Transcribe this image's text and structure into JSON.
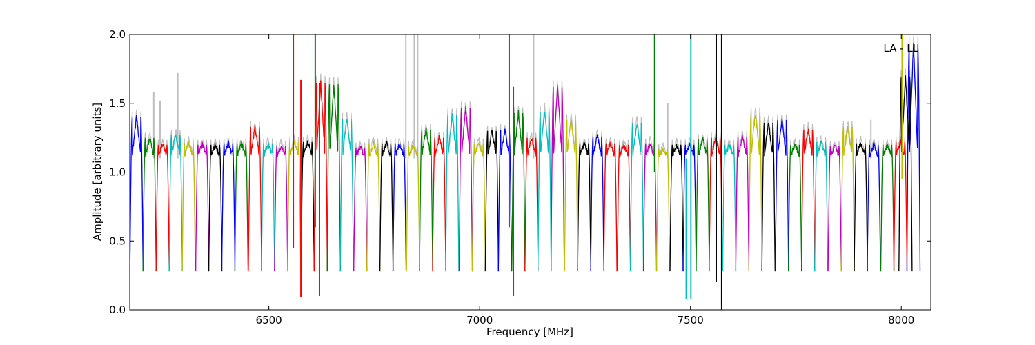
{
  "chart_data": {
    "type": "line",
    "title": "",
    "annotation": "LA - LL",
    "xlabel": "Frequency [MHz]",
    "ylabel": "Amplitude [arbitrary units]",
    "xlim": [
      6170,
      8070
    ],
    "ylim": [
      0.0,
      2.0
    ],
    "xticks": [
      6500,
      7000,
      7500,
      8000
    ],
    "xtick_labels": [
      "6500",
      "7000",
      "7500",
      "8000"
    ],
    "yticks": [
      0.0,
      0.5,
      1.0,
      1.5,
      2.0
    ],
    "ytick_labels": [
      "0.0",
      "0.5",
      "1.0",
      "1.5",
      "2.0"
    ],
    "grid": false,
    "channel_width_mhz": 31.25,
    "background_series": {
      "color": "#bfbfbf",
      "description": "raw channel amplitudes (grey)"
    },
    "color_cycle": [
      "#0000ff",
      "#008000",
      "#ff0000",
      "#00bfbf",
      "#bfbf00",
      "#bf00bf",
      "#000000"
    ],
    "channels": [
      {
        "center": 6186,
        "peak": 1.4,
        "color": "#0000ff"
      },
      {
        "center": 6217,
        "peak": 1.25,
        "color": "#008000"
      },
      {
        "center": 6248,
        "peak": 1.2,
        "color": "#ff0000"
      },
      {
        "center": 6279,
        "peak": 1.27,
        "color": "#00bfbf"
      },
      {
        "center": 6310,
        "peak": 1.21,
        "color": "#bfbf00"
      },
      {
        "center": 6342,
        "peak": 1.2,
        "color": "#bf00bf"
      },
      {
        "center": 6373,
        "peak": 1.2,
        "color": "#000000"
      },
      {
        "center": 6404,
        "peak": 1.21,
        "color": "#0000ff"
      },
      {
        "center": 6435,
        "peak": 1.21,
        "color": "#008000"
      },
      {
        "center": 6467,
        "peak": 1.33,
        "color": "#ff0000"
      },
      {
        "center": 6498,
        "peak": 1.21,
        "color": "#00bfbf"
      },
      {
        "center": 6529,
        "peak": 1.19,
        "color": "#bf00bf"
      },
      {
        "center": 6560,
        "peak": 1.22,
        "color": "#bfbf00"
      },
      {
        "center": 6592,
        "peak": 1.22,
        "color": "#000000"
      },
      {
        "center": 6623,
        "peak": 1.65,
        "color": "#ff0000"
      },
      {
        "center": 6654,
        "peak": 1.64,
        "color": "#008000"
      },
      {
        "center": 6685,
        "peak": 1.39,
        "color": "#00bfbf"
      },
      {
        "center": 6717,
        "peak": 1.18,
        "color": "#bf00bf"
      },
      {
        "center": 6748,
        "peak": 1.21,
        "color": "#bfbf00"
      },
      {
        "center": 6779,
        "peak": 1.21,
        "color": "#000000"
      },
      {
        "center": 6810,
        "peak": 1.21,
        "color": "#0000ff"
      },
      {
        "center": 6842,
        "peak": 1.19,
        "color": "#bfbf00"
      },
      {
        "center": 6873,
        "peak": 1.31,
        "color": "#008000"
      },
      {
        "center": 6904,
        "peak": 1.25,
        "color": "#ff0000"
      },
      {
        "center": 6935,
        "peak": 1.42,
        "color": "#00bfbf"
      },
      {
        "center": 6967,
        "peak": 1.47,
        "color": "#bf00bf"
      },
      {
        "center": 6998,
        "peak": 1.21,
        "color": "#bfbf00"
      },
      {
        "center": 7029,
        "peak": 1.3,
        "color": "#000000"
      },
      {
        "center": 7060,
        "peak": 1.31,
        "color": "#0000ff"
      },
      {
        "center": 7092,
        "peak": 1.43,
        "color": "#008000"
      },
      {
        "center": 7123,
        "peak": 1.25,
        "color": "#ff0000"
      },
      {
        "center": 7154,
        "peak": 1.44,
        "color": "#00bfbf"
      },
      {
        "center": 7185,
        "peak": 1.62,
        "color": "#bf00bf"
      },
      {
        "center": 7217,
        "peak": 1.38,
        "color": "#bfbf00"
      },
      {
        "center": 7248,
        "peak": 1.21,
        "color": "#000000"
      },
      {
        "center": 7279,
        "peak": 1.26,
        "color": "#0000ff"
      },
      {
        "center": 7310,
        "peak": 1.21,
        "color": "#ff0000"
      },
      {
        "center": 7342,
        "peak": 1.2,
        "color": "#ff0000"
      },
      {
        "center": 7373,
        "peak": 1.36,
        "color": "#00bfbf"
      },
      {
        "center": 7404,
        "peak": 1.21,
        "color": "#bf00bf"
      },
      {
        "center": 7435,
        "peak": 1.17,
        "color": "#bfbf00"
      },
      {
        "center": 7467,
        "peak": 1.2,
        "color": "#000000"
      },
      {
        "center": 7498,
        "peak": 1.2,
        "color": "#0000ff"
      },
      {
        "center": 7529,
        "peak": 1.24,
        "color": "#008000"
      },
      {
        "center": 7560,
        "peak": 1.25,
        "color": "#ff0000"
      },
      {
        "center": 7592,
        "peak": 1.2,
        "color": "#00bfbf"
      },
      {
        "center": 7623,
        "peak": 1.26,
        "color": "#bf00bf"
      },
      {
        "center": 7654,
        "peak": 1.43,
        "color": "#bfbf00"
      },
      {
        "center": 7685,
        "peak": 1.36,
        "color": "#000000"
      },
      {
        "center": 7717,
        "peak": 1.38,
        "color": "#0000ff"
      },
      {
        "center": 7748,
        "peak": 1.2,
        "color": "#008000"
      },
      {
        "center": 7779,
        "peak": 1.31,
        "color": "#ff0000"
      },
      {
        "center": 7810,
        "peak": 1.22,
        "color": "#00bfbf"
      },
      {
        "center": 7842,
        "peak": 1.19,
        "color": "#bf00bf"
      },
      {
        "center": 7873,
        "peak": 1.33,
        "color": "#bfbf00"
      },
      {
        "center": 7904,
        "peak": 1.21,
        "color": "#000000"
      },
      {
        "center": 7935,
        "peak": 1.2,
        "color": "#0000ff"
      },
      {
        "center": 7967,
        "peak": 1.2,
        "color": "#008000"
      },
      {
        "center": 7998,
        "peak": 1.22,
        "color": "#ff0000"
      },
      {
        "center": 8029,
        "peak": 1.93,
        "color": "#0000ff"
      },
      {
        "center": 8010,
        "peak": 1.69,
        "color": "#000000"
      }
    ],
    "spikes": [
      {
        "x": 6558,
        "min": 0.45,
        "max": 2.0,
        "color": "#ff0000"
      },
      {
        "x": 6576,
        "min": 0.09,
        "max": 1.67,
        "color": "#ff0000"
      },
      {
        "x": 6610,
        "min": 0.6,
        "max": 2.0,
        "color": "#008000"
      },
      {
        "x": 6620,
        "min": 0.1,
        "max": 1.65,
        "color": "#008000"
      },
      {
        "x": 7070,
        "min": 0.6,
        "max": 2.0,
        "color": "#bf00bf"
      },
      {
        "x": 7080,
        "min": 0.1,
        "max": 1.62,
        "color": "#bf00bf"
      },
      {
        "x": 7415,
        "min": 1.0,
        "max": 2.0,
        "color": "#008000"
      },
      {
        "x": 7490,
        "min": 0.08,
        "max": 1.1,
        "color": "#00bfbf"
      },
      {
        "x": 7501,
        "min": 0.08,
        "max": 2.0,
        "color": "#00bfbf"
      },
      {
        "x": 7561,
        "min": 0.2,
        "max": 2.0,
        "color": "#000000"
      },
      {
        "x": 7574,
        "min": 0.0,
        "max": 2.0,
        "color": "#000000"
      },
      {
        "x": 8002,
        "min": 0.95,
        "max": 2.0,
        "color": "#bfbf00"
      }
    ],
    "grey_spikes": [
      {
        "x": 6227,
        "max": 1.58
      },
      {
        "x": 6242,
        "max": 1.52
      },
      {
        "x": 6284,
        "max": 1.72
      },
      {
        "x": 6825,
        "max": 2.0
      },
      {
        "x": 6845,
        "max": 2.0
      },
      {
        "x": 6853,
        "max": 2.0
      },
      {
        "x": 7128,
        "max": 2.0
      },
      {
        "x": 7446,
        "max": 1.5
      },
      {
        "x": 7928,
        "max": 1.38
      }
    ]
  }
}
